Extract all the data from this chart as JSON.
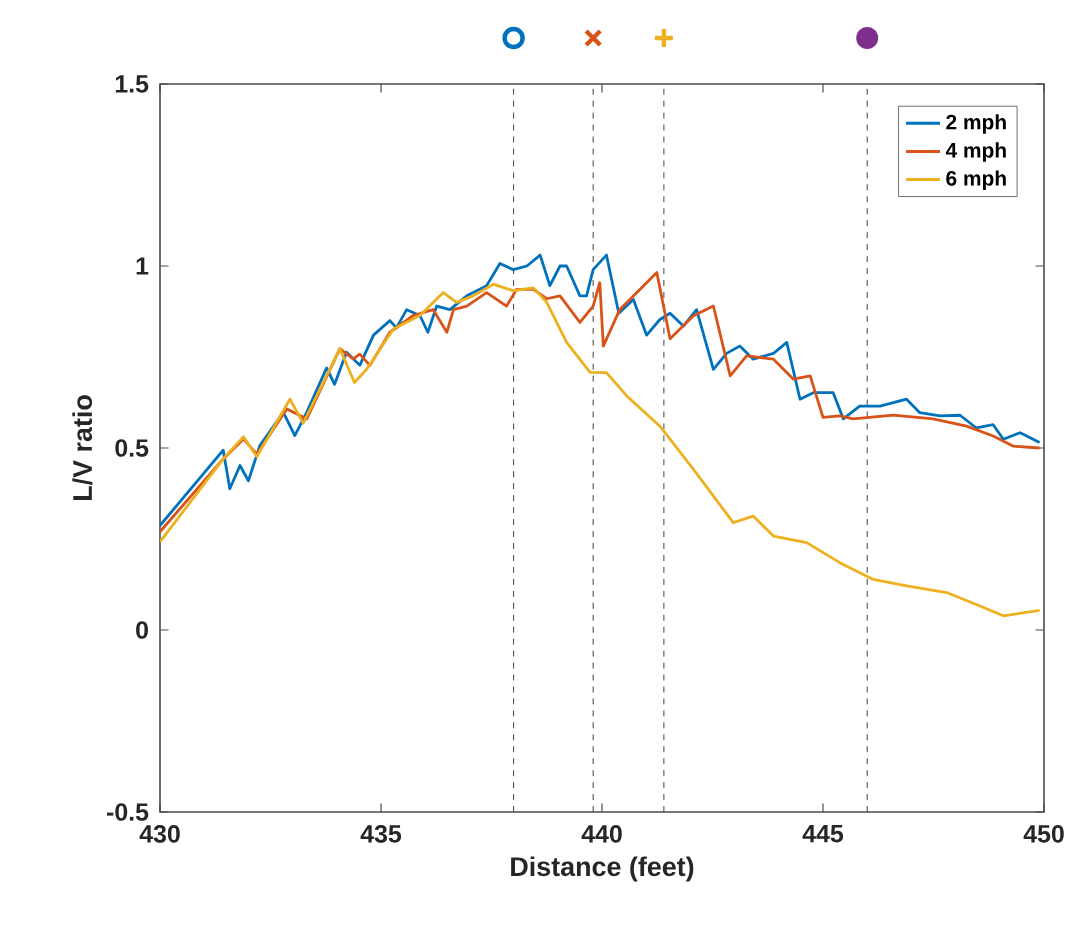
{
  "chart_data": {
    "type": "line",
    "xlabel": "Distance (feet)",
    "ylabel": "L/V ratio",
    "xlim": [
      430,
      450
    ],
    "ylim": [
      -0.5,
      1.5
    ],
    "xticks": [
      430,
      435,
      440,
      445,
      450
    ],
    "yticks": [
      -0.5,
      0,
      0.5,
      1,
      1.5
    ],
    "legend": "top right",
    "grid": false,
    "marker": "none",
    "line_style": "solid",
    "ref_lines": [
      {
        "axis": "x",
        "value": 438.0,
        "color": "#404040",
        "line_style": "dashed"
      },
      {
        "axis": "x",
        "value": 439.8,
        "color": "#404040",
        "line_style": "dashed"
      },
      {
        "axis": "x",
        "value": 441.4,
        "color": "#404040",
        "line_style": "dashed"
      },
      {
        "axis": "x",
        "value": 446.0,
        "color": "#404040",
        "line_style": "dashed"
      }
    ],
    "series": [
      {
        "name": "2 mph",
        "color": "#0072bd",
        "x": [
          430,
          431.43,
          431.58,
          431.81,
          432.0,
          432.26,
          432.79,
          433.05,
          433.32,
          433.77,
          433.95,
          434.22,
          434.52,
          434.83,
          435.2,
          435.35,
          435.58,
          435.88,
          436.06,
          436.26,
          436.56,
          436.94,
          437.39,
          437.69,
          437.99,
          438.3,
          438.6,
          438.82,
          439.05,
          439.2,
          439.5,
          439.65,
          439.8,
          440.1,
          440.38,
          440.71,
          441.01,
          441.31,
          441.54,
          441.84,
          442.14,
          442.52,
          442.82,
          443.12,
          443.42,
          443.88,
          444.18,
          444.48,
          444.78,
          445.23,
          445.46,
          445.83,
          446.29,
          446.89,
          447.19,
          447.65,
          448.1,
          448.47,
          448.85,
          449.08,
          449.46,
          449.9
        ],
        "values": [
          0.287,
          0.494,
          0.388,
          0.452,
          0.41,
          0.507,
          0.598,
          0.534,
          0.598,
          0.72,
          0.675,
          0.763,
          0.727,
          0.81,
          0.85,
          0.83,
          0.88,
          0.864,
          0.818,
          0.89,
          0.88,
          0.918,
          0.946,
          1.007,
          0.99,
          1.0,
          1.03,
          0.946,
          1.0,
          1.0,
          0.918,
          0.918,
          0.99,
          1.03,
          0.87,
          0.908,
          0.81,
          0.853,
          0.87,
          0.835,
          0.88,
          0.716,
          0.76,
          0.78,
          0.744,
          0.76,
          0.79,
          0.634,
          0.652,
          0.652,
          0.58,
          0.615,
          0.615,
          0.634,
          0.597,
          0.588,
          0.59,
          0.555,
          0.564,
          0.524,
          0.542,
          0.515
        ]
      },
      {
        "name": "4 mph",
        "color": "#d95319",
        "x": [
          430,
          431.43,
          431.89,
          432.19,
          432.87,
          433.32,
          434.07,
          434.37,
          434.52,
          434.75,
          435.2,
          435.73,
          436.18,
          436.49,
          436.64,
          436.94,
          437.39,
          437.84,
          438.07,
          438.45,
          438.75,
          439.05,
          439.5,
          439.8,
          439.95,
          440.03,
          440.4,
          441.24,
          441.54,
          442.07,
          442.52,
          442.9,
          443.27,
          443.88,
          444.33,
          444.71,
          445.0,
          445.38,
          445.68,
          446.59,
          447.49,
          448.25,
          448.85,
          449.31,
          449.9
        ],
        "values": [
          0.27,
          0.47,
          0.525,
          0.483,
          0.607,
          0.58,
          0.773,
          0.745,
          0.758,
          0.727,
          0.818,
          0.864,
          0.88,
          0.818,
          0.88,
          0.89,
          0.927,
          0.89,
          0.936,
          0.936,
          0.91,
          0.918,
          0.845,
          0.89,
          0.954,
          0.78,
          0.88,
          0.982,
          0.8,
          0.863,
          0.89,
          0.698,
          0.753,
          0.744,
          0.689,
          0.698,
          0.584,
          0.588,
          0.58,
          0.59,
          0.58,
          0.56,
          0.533,
          0.505,
          0.5
        ]
      },
      {
        "name": "6 mph",
        "color": "#edb120",
        "x": [
          430,
          431.43,
          431.89,
          432.19,
          432.94,
          433.24,
          434.07,
          434.4,
          434.68,
          435.28,
          435.88,
          436.41,
          436.71,
          437.09,
          437.54,
          437.99,
          438.45,
          438.75,
          439.2,
          439.73,
          440.1,
          440.56,
          441.31,
          442.07,
          442.97,
          443.42,
          443.88,
          444.63,
          445.38,
          446.14,
          446.89,
          447.8,
          448.55,
          449.08,
          449.9
        ],
        "values": [
          0.242,
          0.47,
          0.531,
          0.476,
          0.634,
          0.568,
          0.773,
          0.68,
          0.717,
          0.827,
          0.864,
          0.927,
          0.9,
          0.918,
          0.95,
          0.932,
          0.94,
          0.9,
          0.79,
          0.708,
          0.707,
          0.643,
          0.56,
          0.441,
          0.295,
          0.313,
          0.258,
          0.24,
          0.185,
          0.139,
          0.121,
          0.103,
          0.066,
          0.039,
          0.054
        ]
      }
    ]
  }
}
